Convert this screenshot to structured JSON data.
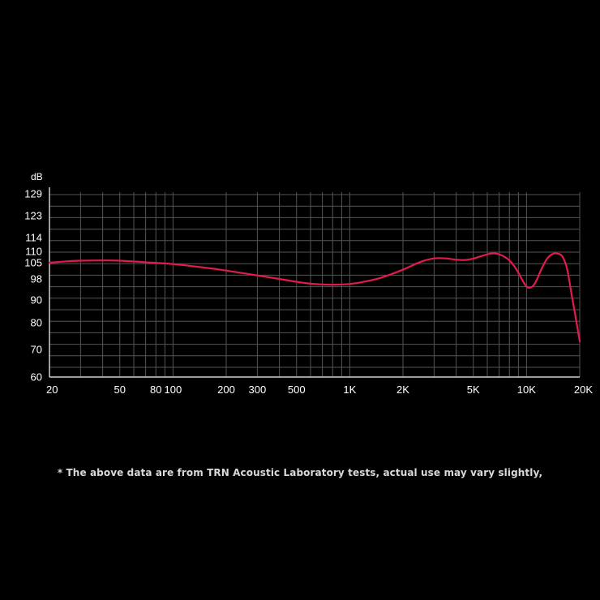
{
  "footnote": "* The above data are from TRN Acoustic Laboratory tests, actual use may vary slightly,",
  "colors": {
    "background": "#000000",
    "grid": "#555555",
    "axis": "#cfcfcf",
    "text": "#ffffff",
    "curve": "#e21b4d"
  },
  "chart_data": {
    "type": "line",
    "title": "",
    "ylabel": "dB",
    "xlabel": "",
    "x_scale": "log",
    "xlim": [
      20,
      20000
    ],
    "grid": true,
    "x_ticks": [
      {
        "value": 20,
        "label": "20"
      },
      {
        "value": 50,
        "label": "50"
      },
      {
        "value": 80,
        "label": "80"
      },
      {
        "value": 100,
        "label": "100"
      },
      {
        "value": 200,
        "label": "200"
      },
      {
        "value": 300,
        "label": "300"
      },
      {
        "value": 500,
        "label": "500"
      },
      {
        "value": 1000,
        "label": "1K"
      },
      {
        "value": 2000,
        "label": "2K"
      },
      {
        "value": 5000,
        "label": "5K"
      },
      {
        "value": 10000,
        "label": "10K"
      },
      {
        "value": 20000,
        "label": "20K"
      }
    ],
    "y_ticks": [
      {
        "value": 60,
        "label": "60"
      },
      {
        "value": 70,
        "label": "70"
      },
      {
        "value": 80,
        "label": "80"
      },
      {
        "value": 90,
        "label": "90"
      },
      {
        "value": 98,
        "label": "98"
      },
      {
        "value": 105,
        "label": "105"
      },
      {
        "value": 110,
        "label": "110"
      },
      {
        "value": 114,
        "label": "114"
      },
      {
        "value": 123,
        "label": "123"
      },
      {
        "value": 129,
        "label": "129"
      }
    ],
    "series": [
      {
        "x": [
          20,
          25,
          30,
          40,
          50,
          70,
          100,
          150,
          200,
          300,
          400,
          500,
          600,
          700,
          800,
          1000,
          1200,
          1500,
          2000,
          2500,
          3000,
          3500,
          4000,
          4500,
          5000,
          5500,
          6000,
          6500,
          7000,
          7500,
          8000,
          8500,
          9000,
          9500,
          10000,
          10500,
          11000,
          11500,
          12000,
          13000,
          14000,
          15000,
          16000,
          17000,
          18000,
          19000,
          20000
        ],
        "y": [
          105,
          105.6,
          105.9,
          106,
          105.9,
          105.2,
          104.4,
          102.9,
          101.6,
          99.5,
          98,
          96.9,
          96.2,
          95.9,
          95.8,
          96.1,
          96.9,
          98.5,
          102,
          105.3,
          106.9,
          106.9,
          106.3,
          106.2,
          106.8,
          107.8,
          108.7,
          109.1,
          108.7,
          107.6,
          106,
          103.6,
          100.6,
          97.4,
          95.1,
          94.7,
          95.7,
          98,
          101.4,
          106.5,
          108.8,
          109,
          107.6,
          102,
          92,
          82,
          73
        ]
      }
    ]
  }
}
